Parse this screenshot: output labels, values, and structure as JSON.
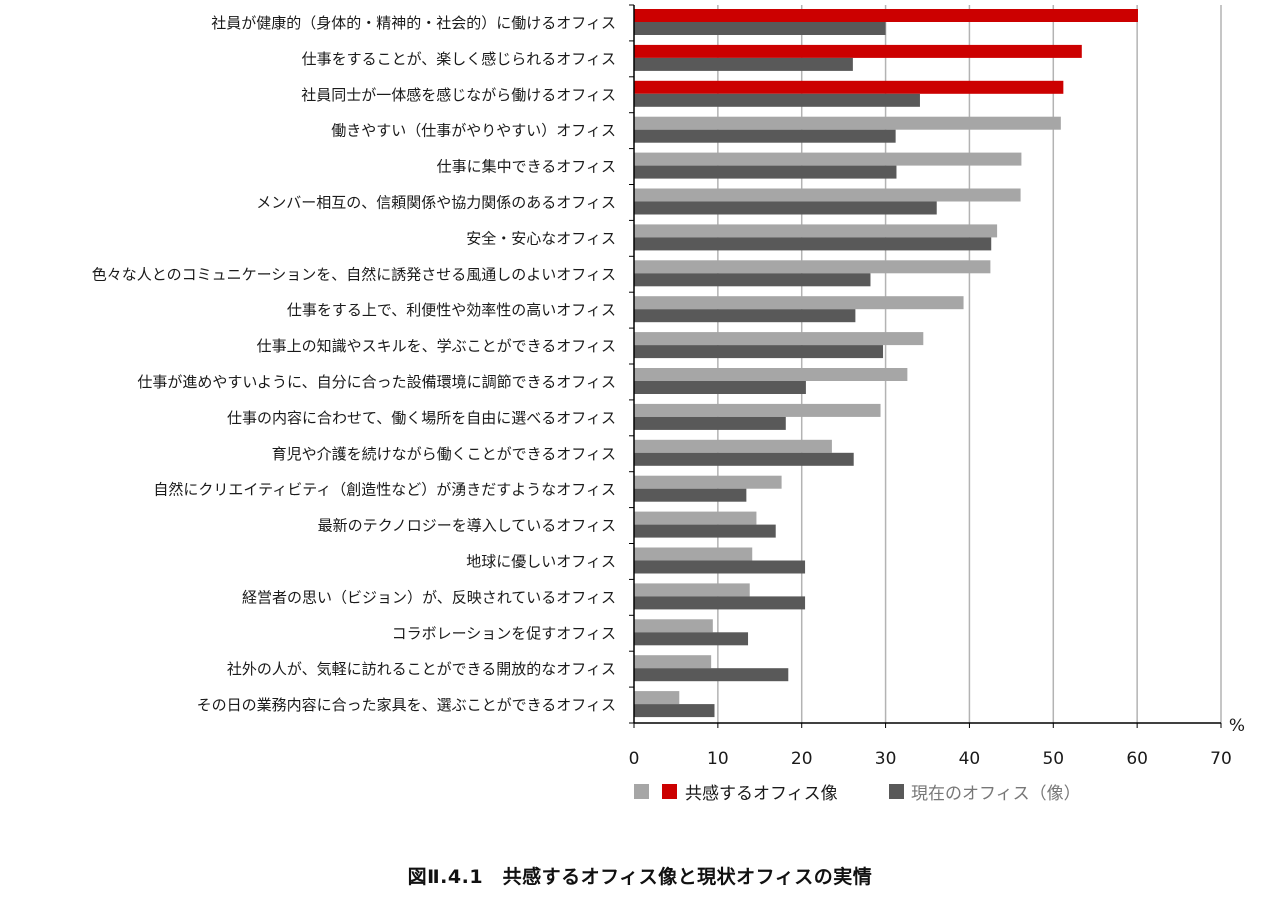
{
  "figure_caption": "図Ⅱ.4.1　共感するオフィス像と現状オフィスの実情",
  "colors": {
    "empathy_highlight": "#cc0000",
    "empathy_normal": "#a6a6a6",
    "current": "#595959",
    "grid": "#b3b3b3",
    "axis": "#000000"
  },
  "chart_data": {
    "type": "bar",
    "orientation": "horizontal",
    "grid": true,
    "legend_position": "bottom",
    "xlim": [
      0,
      70
    ],
    "xticks": [
      0,
      10,
      20,
      30,
      40,
      50,
      60,
      70
    ],
    "unit_label": "%",
    "categories": [
      "社員が健康的（身体的・精神的・社会的）に働けるオフィス",
      "仕事をすることが、楽しく感じられるオフィス",
      "社員同士が一体感を感じながら働けるオフィス",
      "働きやすい（仕事がやりやすい）オフィス",
      "仕事に集中できるオフィス",
      "メンバー相互の、信頼関係や協力関係のあるオフィス",
      "安全・安心なオフィス",
      "色々な人とのコミュニケーションを、自然に誘発させる風通しのよいオフィス",
      "仕事をする上で、利便性や効率性の高いオフィス",
      "仕事上の知識やスキルを、学ぶことができるオフィス",
      "仕事が進めやすいように、自分に合った設備環境に調節できるオフィス",
      "仕事の内容に合わせて、働く場所を自由に選べるオフィス",
      "育児や介護を続けながら働くことができるオフィス",
      "自然にクリエイティビティ（創造性など）が湧きだすようなオフィス",
      "最新のテクノロジーを導入しているオフィス",
      "地球に優しいオフィス",
      "経営者の思い（ビジョン）が、反映されているオフィス",
      "コラボレーションを促すオフィス",
      "社外の人が、気軽に訪れることができる開放的なオフィス",
      "その日の業務内容に合った家具を、選ぶことができるオフィス"
    ],
    "highlight_top_n": 3,
    "series": [
      {
        "name": "共感するオフィス像",
        "values": [
          60.1,
          53.4,
          51.2,
          50.9,
          46.2,
          46.1,
          43.3,
          42.5,
          39.3,
          34.5,
          32.6,
          29.4,
          23.6,
          17.6,
          14.6,
          14.1,
          13.8,
          9.4,
          9.2,
          5.4
        ]
      },
      {
        "name": "現在のオフィス（像）",
        "values": [
          30.0,
          26.1,
          34.1,
          31.2,
          31.3,
          36.1,
          42.6,
          28.2,
          26.4,
          29.7,
          20.5,
          18.1,
          26.2,
          13.4,
          16.9,
          20.4,
          20.4,
          13.6,
          18.4,
          9.6
        ]
      }
    ]
  }
}
